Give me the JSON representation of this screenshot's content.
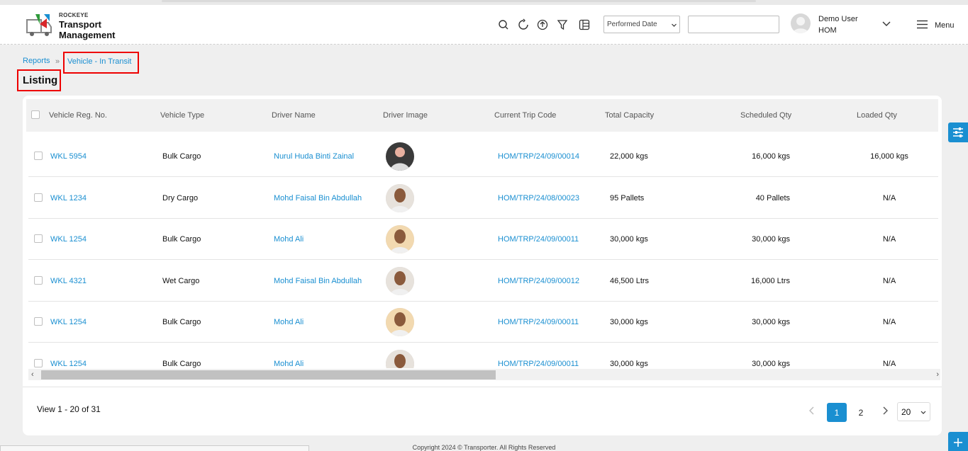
{
  "header": {
    "brand_small": "ROCKEYE",
    "brand_line1": "Transport",
    "brand_line2": "Management",
    "icons": [
      "search-icon",
      "refresh-icon",
      "upload-icon",
      "filter-icon",
      "columns-icon"
    ],
    "date_filter": "Performed Date",
    "search_value": "",
    "user_name": "Demo User",
    "user_role": "HOM",
    "menu_label": "Menu"
  },
  "breadcrumb": {
    "parent": "Reports",
    "current": "Vehicle - In Transit"
  },
  "page_title": "Listing",
  "table": {
    "columns": [
      "Vehicle Reg. No.",
      "Vehicle Type",
      "Driver Name",
      "Driver Image",
      "Current Trip Code",
      "Total Capacity",
      "Scheduled Qty",
      "Loaded Qty"
    ],
    "rows": [
      {
        "reg": "WKL 5954",
        "type": "Bulk Cargo",
        "driver": "Nurul Huda Binti Zainal",
        "trip": "HOM/TRP/24/09/00014",
        "capacity": "22,000 kgs",
        "scheduled": "16,000 kgs",
        "loaded": "16,000 kgs"
      },
      {
        "reg": "WKL 1234",
        "type": "Dry Cargo",
        "driver": "Mohd Faisal Bin Abdullah",
        "trip": "HOM/TRP/24/08/00023",
        "capacity": "95 Pallets",
        "scheduled": "40 Pallets",
        "loaded": "N/A"
      },
      {
        "reg": "WKL 1254",
        "type": "Bulk Cargo",
        "driver": "Mohd Ali",
        "trip": "HOM/TRP/24/09/00011",
        "capacity": "30,000 kgs",
        "scheduled": "30,000 kgs",
        "loaded": "N/A"
      },
      {
        "reg": "WKL 4321",
        "type": "Wet Cargo",
        "driver": "Mohd Faisal Bin Abdullah",
        "trip": "HOM/TRP/24/09/00012",
        "capacity": "46,500 Ltrs",
        "scheduled": "16,000 Ltrs",
        "loaded": "N/A"
      },
      {
        "reg": "WKL 1254",
        "type": "Bulk Cargo",
        "driver": "Mohd Ali",
        "trip": "HOM/TRP/24/09/00011",
        "capacity": "30,000 kgs",
        "scheduled": "30,000 kgs",
        "loaded": "N/A"
      },
      {
        "reg": "WKL 1254",
        "type": "Bulk Cargo",
        "driver": "Mohd Ali",
        "trip": "HOM/TRP/24/09/00011",
        "capacity": "30,000 kgs",
        "scheduled": "30,000 kgs",
        "loaded": "N/A"
      }
    ]
  },
  "pagination": {
    "view_text": "View 1 - 20 of 31",
    "pages": [
      "1",
      "2"
    ],
    "current_page": "1",
    "page_size": "20"
  },
  "footer": "Copyright 2024 © Transporter. All Rights Reserved",
  "colors": {
    "accent": "#1a8fd1",
    "highlight_box": "#e00000"
  }
}
